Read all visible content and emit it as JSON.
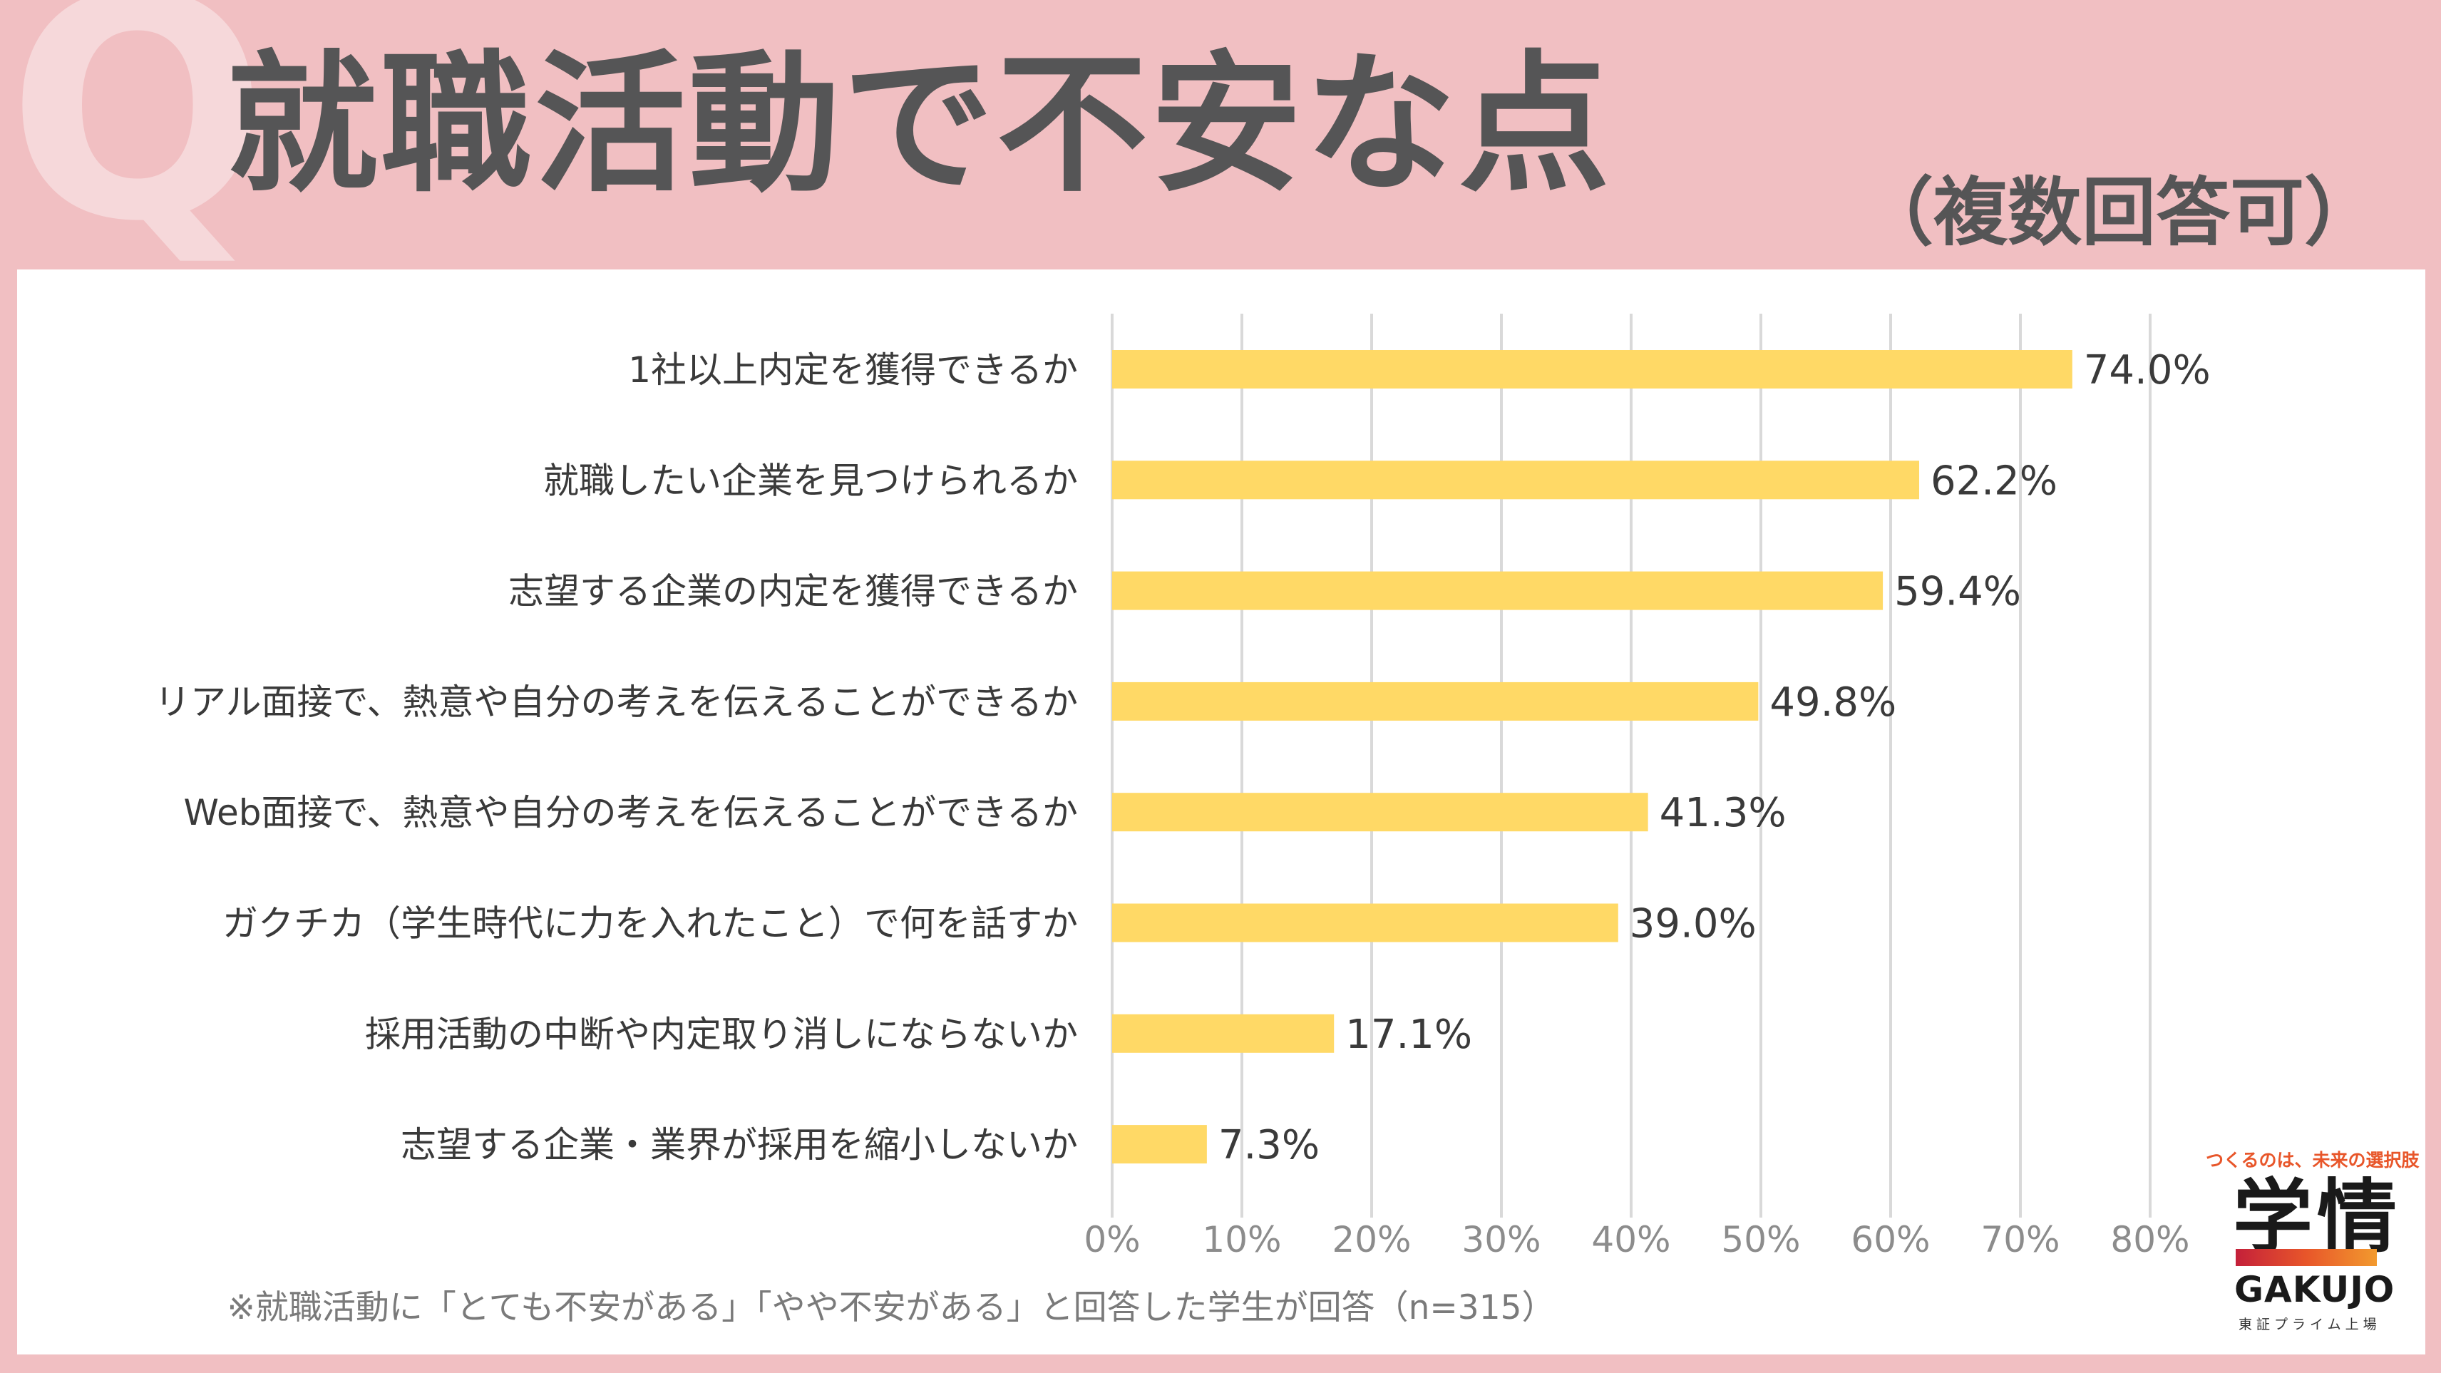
{
  "header": {
    "q_mark": "Q",
    "title": "就職活動で不安な点",
    "subtitle": "（複数回答可）"
  },
  "colors": {
    "background": "#F1BFC2",
    "bar": "#FFD966",
    "title_text": "#555556",
    "grid": "#D9D9D9"
  },
  "chart_data": {
    "type": "bar",
    "orientation": "horizontal",
    "title": "就職活動で不安な点",
    "categories": [
      "1社以上内定を獲得できるか",
      "就職したい企業を見つけられるか",
      "志望する企業の内定を獲得できるか",
      "リアル面接で、熱意や自分の考えを伝えることができるか",
      "Web面接で、熱意や自分の考えを伝えることができるか",
      "ガクチカ（学生時代に力を入れたこと）で何を話すか",
      "採用活動の中断や内定取り消しにならないか",
      "志望する企業・業界が採用を縮小しないか"
    ],
    "values": [
      74.0,
      62.2,
      59.4,
      49.8,
      41.3,
      39.0,
      17.1,
      7.3
    ],
    "value_labels": [
      "74.0%",
      "62.2%",
      "59.4%",
      "49.8%",
      "41.3%",
      "39.0%",
      "17.1%",
      "7.3%"
    ],
    "xlim": [
      0,
      80
    ],
    "ticks": [
      0,
      10,
      20,
      30,
      40,
      50,
      60,
      70,
      80
    ],
    "tick_labels": [
      "0%",
      "10%",
      "20%",
      "30%",
      "40%",
      "50%",
      "60%",
      "70%",
      "80%"
    ],
    "grid": true,
    "xlabel": "",
    "ylabel": ""
  },
  "footnote": "※就職活動に「とても不安がある」「やや不安がある」と回答した学生が回答（n=315）",
  "logo": {
    "tagline": "つくるのは、未来の選択肢",
    "mark": "学情",
    "name": "GAKUJO",
    "sub": "東証プライム上場"
  }
}
